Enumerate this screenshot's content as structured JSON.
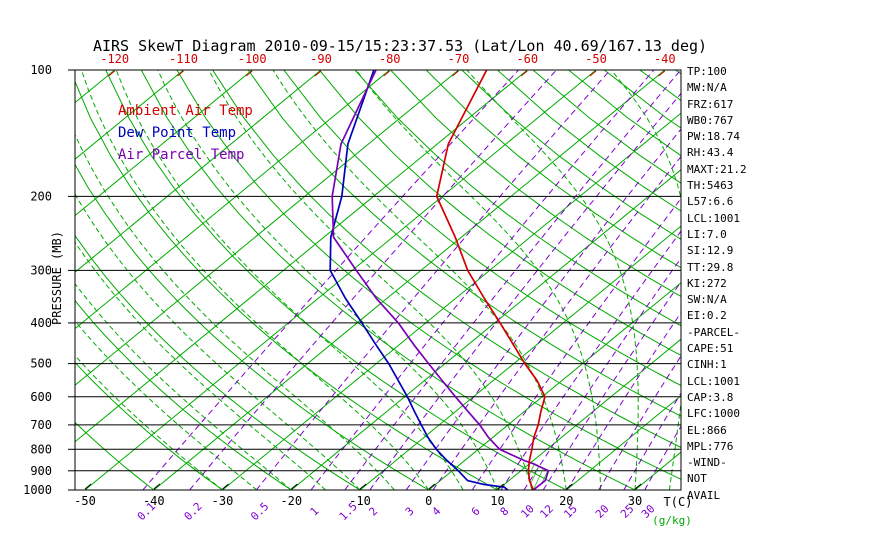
{
  "title": "AIRS SkewT Diagram 2010-09-15/15:23:37.53 (Lat/Lon 40.69/167.13 deg)",
  "legend": {
    "ambient": "Ambient Air Temp",
    "dew_point": "Dew Point Temp",
    "air_parcel": "Air Parcel Temp"
  },
  "colors": {
    "ambient": "#d40000",
    "dew_point": "#0000b8",
    "air_parcel": "#7a00b4",
    "isotherm": "#00aa00",
    "adiabat": "#00aa00",
    "moist_adiabat": "#00aa00",
    "mixing_ratio": "#8000d0",
    "axis": "#000000",
    "top_labels": "#d40000",
    "unit_gkg": "#00aa00"
  },
  "stats": {
    "lines": [
      "TP:100",
      "MW:N/A",
      "FRZ:617",
      "WB0:767",
      "PW:18.74",
      "RH:43.4",
      "MAXT:21.2",
      "TH:5463",
      "L57:6.6",
      "LCL:1001",
      "LI:7.0",
      "SI:12.9",
      "TT:29.8",
      "KI:272",
      "SW:N/A",
      "EI:0.2",
      "-PARCEL-",
      "CAPE:51",
      "CINH:1",
      "LCL:1001",
      "CAP:3.8",
      "LFC:1000",
      "EL:866",
      "MPL:776",
      "-WIND-",
      "NOT",
      "AVAIL"
    ]
  },
  "axes": {
    "pressure_label": "PRESSURE (MB)",
    "temp_unit": "T(C)",
    "mixing_unit": "(g/kg)",
    "pressure_ticks": [
      100,
      200,
      300,
      400,
      500,
      600,
      700,
      800,
      900,
      1000
    ],
    "top_temp_ticks": [
      -120,
      -110,
      -100,
      -90,
      -80,
      -70,
      -60,
      -50,
      -40
    ],
    "bottom_temp_ticks": [
      -50,
      -40,
      -30,
      -20,
      -10,
      0,
      10,
      20,
      30
    ]
  },
  "chart_data": {
    "type": "line",
    "title": "AIRS SkewT Diagram 2010-09-15/15:23:37.53 (Lat/Lon 40.69/167.13 deg)",
    "xlabel": "T(C)",
    "ylabel": "PRESSURE (MB)",
    "x_range_c": [
      -120,
      40
    ],
    "y_range_mb": [
      100,
      1000
    ],
    "y_scale": "log",
    "skewed": true,
    "background_lines": {
      "isotherms_c": {
        "min": -120,
        "max": 40,
        "step": 10
      },
      "dry_adiabats_c": {
        "min": -40,
        "max": 190,
        "step": 10
      },
      "moist_adiabats_c": {
        "min": -30,
        "max": 40,
        "step": 5
      },
      "mixing_ratio_gkg": [
        0.1,
        0.2,
        0.5,
        1,
        1.5,
        2,
        3,
        4,
        6,
        8,
        10,
        12,
        15,
        20,
        25,
        30
      ]
    },
    "series": [
      {
        "name": "Ambient Air Temp",
        "color": "#d40000",
        "points_p_t": [
          [
            1000,
            15.2
          ],
          [
            950,
            13.0
          ],
          [
            900,
            11.1
          ],
          [
            850,
            9.4
          ],
          [
            800,
            7.8
          ],
          [
            750,
            6.0
          ],
          [
            700,
            4.4
          ],
          [
            650,
            2.4
          ],
          [
            600,
            0.4
          ],
          [
            550,
            -3.5
          ],
          [
            500,
            -8.4
          ],
          [
            450,
            -13.5
          ],
          [
            400,
            -19.2
          ],
          [
            350,
            -25.8
          ],
          [
            300,
            -33.2
          ],
          [
            250,
            -40.9
          ],
          [
            200,
            -50.8
          ],
          [
            150,
            -58.4
          ],
          [
            100,
            -65.9
          ]
        ]
      },
      {
        "name": "Dew Point Temp",
        "color": "#0000b8",
        "points_p_t": [
          [
            1000,
            11.5
          ],
          [
            985,
            10.5
          ],
          [
            970,
            7.0
          ],
          [
            950,
            4.0
          ],
          [
            900,
            0.9
          ],
          [
            850,
            -2.6
          ],
          [
            800,
            -6.1
          ],
          [
            750,
            -9.4
          ],
          [
            700,
            -12.6
          ],
          [
            650,
            -16.0
          ],
          [
            600,
            -19.6
          ],
          [
            550,
            -23.7
          ],
          [
            500,
            -28.2
          ],
          [
            450,
            -33.5
          ],
          [
            400,
            -39.3
          ],
          [
            350,
            -46.0
          ],
          [
            300,
            -53.2
          ],
          [
            250,
            -59.0
          ],
          [
            200,
            -64.6
          ],
          [
            150,
            -73.0
          ],
          [
            100,
            -82.3
          ]
        ]
      },
      {
        "name": "Air Parcel Temp",
        "color": "#7a00b4",
        "points_p_t": [
          [
            1000,
            15.2
          ],
          [
            950,
            15.3
          ],
          [
            900,
            14.0
          ],
          [
            866,
            10.6
          ],
          [
            850,
            8.6
          ],
          [
            800,
            3.1
          ],
          [
            750,
            -0.6
          ],
          [
            700,
            -4.1
          ],
          [
            650,
            -8.2
          ],
          [
            600,
            -12.6
          ],
          [
            550,
            -17.3
          ],
          [
            500,
            -22.4
          ],
          [
            450,
            -28.0
          ],
          [
            400,
            -34.0
          ],
          [
            350,
            -41.5
          ],
          [
            300,
            -49.4
          ],
          [
            250,
            -58.6
          ],
          [
            200,
            -66.0
          ],
          [
            150,
            -74.0
          ],
          [
            100,
            -82.0
          ]
        ]
      }
    ],
    "cape_hatch": {
      "pressure_range_mb": [
        1000,
        866
      ],
      "between": [
        "Ambient Air Temp",
        "Air Parcel Temp"
      ]
    }
  }
}
